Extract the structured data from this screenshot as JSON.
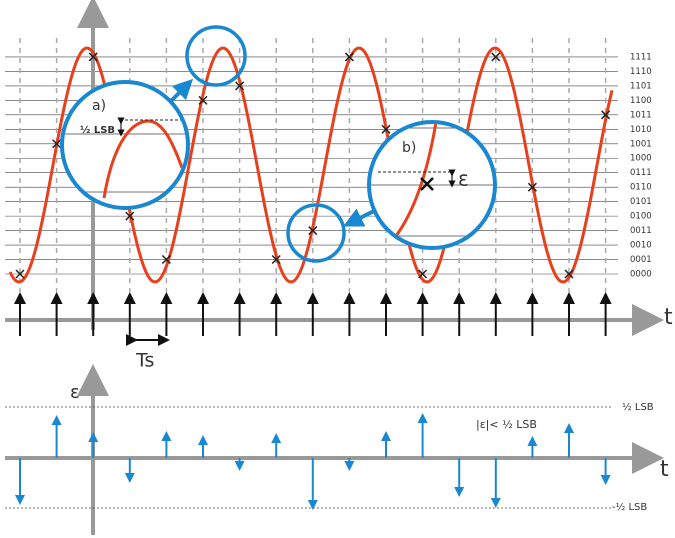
{
  "top_plot": {
    "level_labels": [
      "1111",
      "1110",
      "1101",
      "1100",
      "1011",
      "1010",
      "1001",
      "1000",
      "0111",
      "0110",
      "0101",
      "0100",
      "0011",
      "0010",
      "0001",
      "0000"
    ],
    "time_label": "t",
    "period_label": "Ts",
    "inset_a": {
      "label": "a)",
      "annotation": "½ LSB"
    },
    "inset_b": {
      "label": "b)",
      "annotation": "ε"
    }
  },
  "bottom_plot": {
    "axis_label": "ε",
    "time_label": "t",
    "upper_label": "½ LSB",
    "lower_label": "-½ LSB",
    "bound_note": "|ε|< ½ LSB"
  }
}
